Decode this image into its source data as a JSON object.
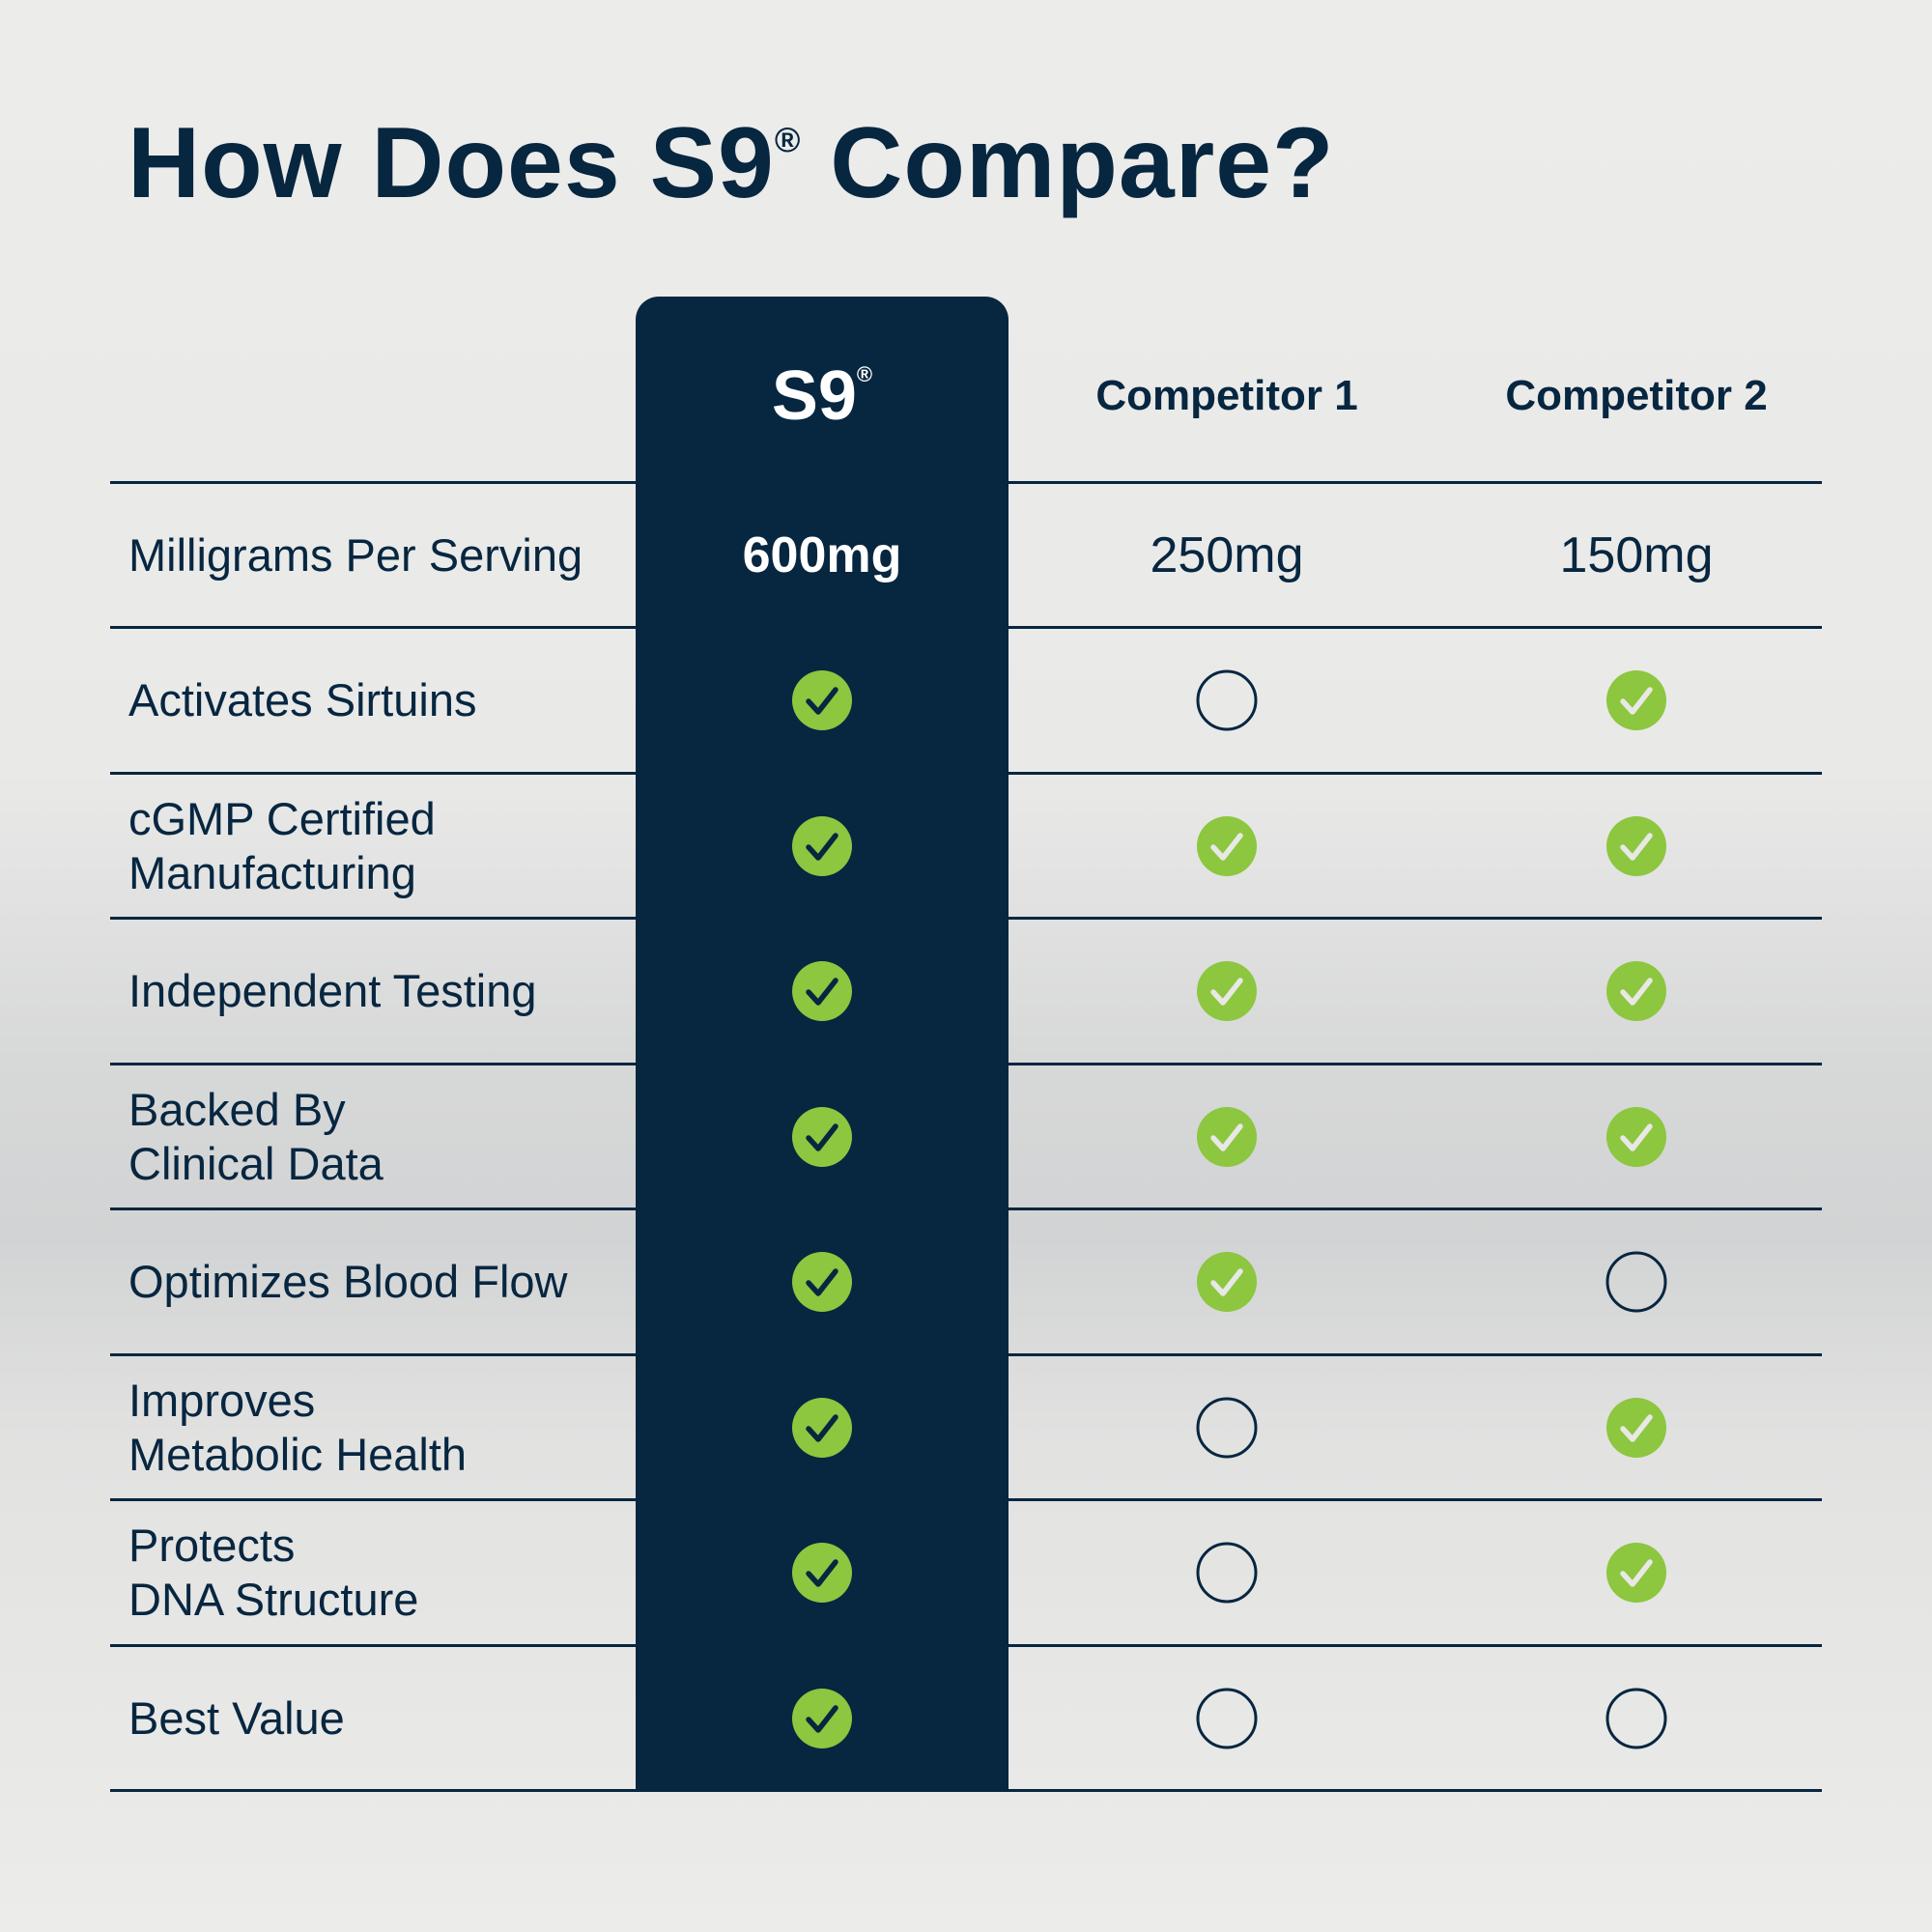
{
  "title": {
    "text": "How Does S9",
    "mark": "®",
    "suffix": " Compare?"
  },
  "columns": [
    {
      "label": "S9",
      "mark": "®"
    },
    {
      "label": "Competitor 1"
    },
    {
      "label": "Competitor 2"
    }
  ],
  "colors": {
    "navy": "#072640",
    "green": "#8dc63f",
    "background": "#ececea"
  },
  "rows": [
    {
      "label": "Milligrams Per Serving",
      "values": [
        "600mg",
        "250mg",
        "150mg"
      ]
    },
    {
      "label": "Activates Sirtuins",
      "values": [
        "check",
        "empty",
        "check"
      ]
    },
    {
      "label": "cGMP Certified\nManufacturing",
      "values": [
        "check",
        "check",
        "check"
      ]
    },
    {
      "label": "Independent Testing",
      "values": [
        "check",
        "check",
        "check"
      ]
    },
    {
      "label": "Backed By\nClinical Data",
      "values": [
        "check",
        "check",
        "check"
      ]
    },
    {
      "label": "Optimizes Blood Flow",
      "values": [
        "check",
        "check",
        "empty"
      ]
    },
    {
      "label": "Improves\nMetabolic Health",
      "values": [
        "check",
        "empty",
        "check"
      ]
    },
    {
      "label": "Protects\nDNA Structure",
      "values": [
        "check",
        "empty",
        "check"
      ]
    },
    {
      "label": "Best Value",
      "values": [
        "check",
        "empty",
        "empty"
      ]
    }
  ]
}
